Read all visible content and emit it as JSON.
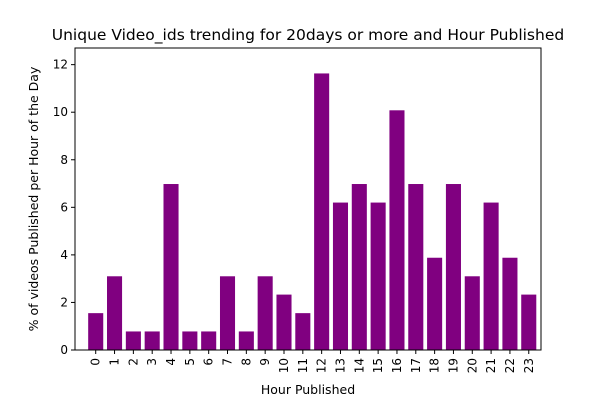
{
  "chart_data": {
    "type": "bar",
    "title": "Unique Video_ids trending for 20days or more and Hour Published",
    "xlabel": "Hour Published",
    "ylabel": "% of videos Published per Hour of the Day",
    "categories": [
      "0",
      "1",
      "2",
      "3",
      "4",
      "5",
      "6",
      "7",
      "8",
      "9",
      "10",
      "11",
      "12",
      "13",
      "14",
      "15",
      "16",
      "17",
      "18",
      "19",
      "20",
      "21",
      "22",
      "23"
    ],
    "values": [
      1.55,
      3.1,
      0.78,
      0.78,
      6.98,
      0.78,
      0.78,
      3.1,
      0.78,
      3.1,
      2.33,
      1.55,
      11.63,
      6.2,
      6.98,
      6.2,
      10.08,
      6.98,
      3.88,
      6.98,
      3.1,
      6.2,
      3.88,
      2.33
    ],
    "ylim": [
      0,
      12.7
    ],
    "yticks": [
      0,
      2,
      4,
      6,
      8,
      10,
      12
    ],
    "grid": false,
    "bar_color": "#800080"
  }
}
